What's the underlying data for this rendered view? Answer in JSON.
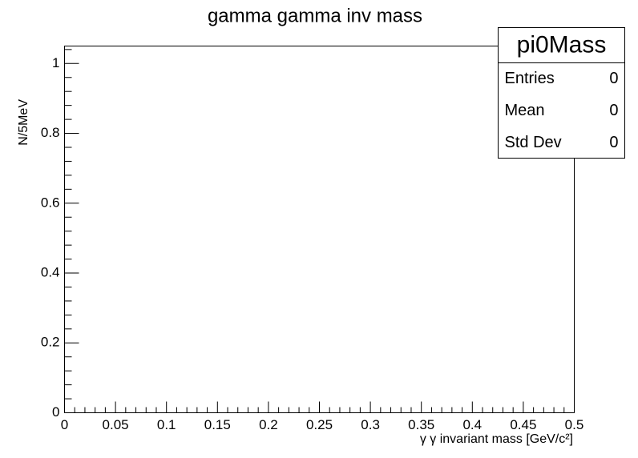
{
  "chart_data": {
    "type": "histogram",
    "title": "gamma gamma inv mass",
    "xlabel": "γ γ invariant mass   [GeV/c²]",
    "ylabel": "N/5MeV",
    "xlim": [
      0,
      0.5
    ],
    "xticks": [
      0,
      0.05,
      0.1,
      0.15,
      0.2,
      0.25,
      0.3,
      0.35,
      0.4,
      0.45,
      0.5
    ],
    "ylim": [
      0,
      1.05
    ],
    "yticks": [
      0,
      0.2,
      0.4,
      0.6,
      0.8,
      1
    ],
    "color": "#000000",
    "stats": {
      "title": "pi0Mass",
      "rows": [
        {
          "label": "Entries",
          "value": 0
        },
        {
          "label": "Mean",
          "value": 0
        },
        {
          "label": "Std Dev",
          "value": 0
        }
      ]
    }
  }
}
